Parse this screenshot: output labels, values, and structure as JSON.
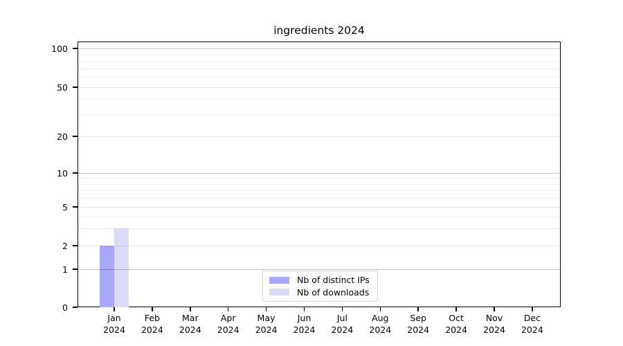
{
  "title": "ingredients 2024",
  "chart_data": {
    "type": "bar",
    "title": "ingredients 2024",
    "categories": [
      "Jan",
      "Feb",
      "Mar",
      "Apr",
      "May",
      "Jun",
      "Jul",
      "Aug",
      "Sep",
      "Oct",
      "Nov",
      "Dec"
    ],
    "category_sublabel": "2024",
    "series": [
      {
        "name": "Nb of distinct IPs",
        "color": "#a8a8f8",
        "values": [
          2,
          0,
          0,
          0,
          0,
          0,
          0,
          0,
          0,
          0,
          0,
          0
        ]
      },
      {
        "name": "Nb of downloads",
        "color": "#dbdbf8",
        "values": [
          3,
          0,
          0,
          0,
          0,
          0,
          0,
          0,
          0,
          0,
          0,
          0
        ]
      }
    ],
    "y_axis": {
      "scale": "log-like",
      "major_ticks": [
        0,
        1,
        2,
        5,
        10,
        20,
        50,
        100
      ],
      "emphasized_gridlines": [
        1,
        10,
        100
      ],
      "minor_gridlines": [
        3,
        4,
        6,
        7,
        8,
        9,
        30,
        40,
        60,
        70,
        80,
        90
      ]
    },
    "legend": {
      "position": "inside-bottom-center"
    },
    "grid": true,
    "axis_color": "#000000",
    "background": "#ffffff"
  }
}
